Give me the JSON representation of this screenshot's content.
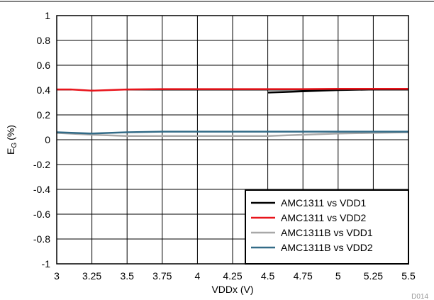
{
  "chart_data": {
    "type": "line",
    "title": "",
    "xlabel": "VDDx (V)",
    "ylabel_main": "E",
    "ylabel_sub": "G",
    "ylabel_unit": "(%)",
    "xlim": [
      3,
      5.5
    ],
    "ylim": [
      -1,
      1
    ],
    "x_ticks": [
      3,
      3.25,
      3.5,
      3.75,
      4,
      4.25,
      4.5,
      4.75,
      5,
      5.25,
      5.5
    ],
    "x_tick_labels": [
      "3",
      "3.25",
      "3.5",
      "3.75",
      "4",
      "4.25",
      "4.5",
      "4.75",
      "5",
      "5.25",
      "5.5"
    ],
    "y_ticks": [
      -1,
      -0.8,
      -0.6,
      -0.4,
      -0.2,
      0,
      0.2,
      0.4,
      0.6,
      0.8,
      1
    ],
    "y_tick_labels": [
      "-1",
      "-0.8",
      "-0.6",
      "-0.4",
      "-0.2",
      "0",
      "0.2",
      "0.4",
      "0.6",
      "0.8",
      "1"
    ],
    "grid": true,
    "legend_position": "bottom-right",
    "series": [
      {
        "name": "AMC1311 vs VDD1",
        "color": "#000000",
        "x": [
          4.5,
          4.75,
          5,
          5.25,
          5.5
        ],
        "y": [
          0.38,
          0.39,
          0.4,
          0.405,
          0.405
        ]
      },
      {
        "name": "AMC1311 vs VDD2",
        "color": "#e8141b",
        "x": [
          3,
          3.1,
          3.25,
          3.5,
          3.75,
          4,
          4.25,
          4.5,
          4.75,
          5,
          5.25,
          5.5
        ],
        "y": [
          0.405,
          0.405,
          0.395,
          0.405,
          0.408,
          0.408,
          0.408,
          0.408,
          0.408,
          0.41,
          0.41,
          0.41
        ]
      },
      {
        "name": "AMC1311B vs VDD1",
        "color": "#a8a8a8",
        "x": [
          3,
          3.25,
          3.5,
          3.75,
          4,
          4.25,
          4.5,
          4.75,
          5,
          5.25,
          5.5
        ],
        "y": [
          0.055,
          0.04,
          0.03,
          0.03,
          0.03,
          0.03,
          0.03,
          0.04,
          0.05,
          0.055,
          0.06
        ]
      },
      {
        "name": "AMC1311B vs VDD2",
        "color": "#336b87",
        "x": [
          3,
          3.25,
          3.5,
          3.75,
          4,
          4.25,
          4.5,
          4.75,
          5,
          5.25,
          5.5
        ],
        "y": [
          0.06,
          0.05,
          0.06,
          0.065,
          0.065,
          0.065,
          0.065,
          0.065,
          0.065,
          0.065,
          0.065
        ]
      }
    ],
    "reference": "D014"
  }
}
